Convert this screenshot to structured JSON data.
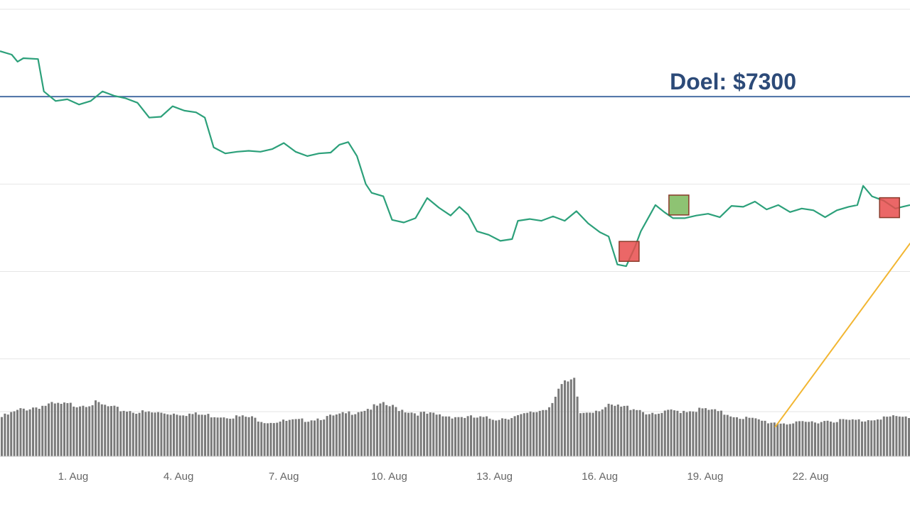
{
  "chart_data": {
    "type": "line",
    "x_axis": {
      "type": "datetime",
      "tick_labels": [
        "1. Aug",
        "4. Aug",
        "7. Aug",
        "10. Aug",
        "13. Aug",
        "16. Aug",
        "19. Aug",
        "22. Aug"
      ],
      "range": [
        "2018-07-29T22:00",
        "2018-08-24T20:00"
      ]
    },
    "price_axis": {
      "range": [
        5750,
        7800
      ],
      "grid": true,
      "gridlines": [
        5800,
        6300,
        6800,
        7300,
        7800
      ],
      "labels_visible": false
    },
    "volume_axis": {
      "range": [
        0,
        1
      ]
    },
    "target_line": {
      "label": "Doel: $7300",
      "value": 7300,
      "color": "#4a6fa5",
      "label_color": "#2c4a78"
    },
    "series": [
      {
        "kind": "price",
        "color": "#2ca07a",
        "points": [
          [
            "2018-07-29T22:00",
            7560
          ],
          [
            "2018-07-30T06:00",
            7540
          ],
          [
            "2018-07-30T10:00",
            7500
          ],
          [
            "2018-07-30T14:00",
            7520
          ],
          [
            "2018-07-31T00:00",
            7515
          ],
          [
            "2018-07-31T04:00",
            7330
          ],
          [
            "2018-07-31T12:00",
            7275
          ],
          [
            "2018-07-31T20:00",
            7285
          ],
          [
            "2018-08-01T04:00",
            7255
          ],
          [
            "2018-08-01T12:00",
            7275
          ],
          [
            "2018-08-01T20:00",
            7330
          ],
          [
            "2018-08-02T04:00",
            7305
          ],
          [
            "2018-08-02T12:00",
            7290
          ],
          [
            "2018-08-02T20:00",
            7265
          ],
          [
            "2018-08-03T04:00",
            7180
          ],
          [
            "2018-08-03T12:00",
            7185
          ],
          [
            "2018-08-03T20:00",
            7245
          ],
          [
            "2018-08-04T04:00",
            7220
          ],
          [
            "2018-08-04T12:00",
            7210
          ],
          [
            "2018-08-04T18:00",
            7180
          ],
          [
            "2018-08-05T00:00",
            7010
          ],
          [
            "2018-08-05T08:00",
            6975
          ],
          [
            "2018-08-05T16:00",
            6985
          ],
          [
            "2018-08-06T00:00",
            6990
          ],
          [
            "2018-08-06T08:00",
            6985
          ],
          [
            "2018-08-06T16:00",
            7000
          ],
          [
            "2018-08-07T00:00",
            7035
          ],
          [
            "2018-08-07T08:00",
            6985
          ],
          [
            "2018-08-07T16:00",
            6960
          ],
          [
            "2018-08-08T00:00",
            6975
          ],
          [
            "2018-08-08T08:00",
            6980
          ],
          [
            "2018-08-08T14:00",
            7025
          ],
          [
            "2018-08-08T20:00",
            7040
          ],
          [
            "2018-08-09T02:00",
            6960
          ],
          [
            "2018-08-09T08:00",
            6800
          ],
          [
            "2018-08-09T12:00",
            6750
          ],
          [
            "2018-08-09T20:00",
            6730
          ],
          [
            "2018-08-10T02:00",
            6595
          ],
          [
            "2018-08-10T10:00",
            6580
          ],
          [
            "2018-08-10T18:00",
            6605
          ],
          [
            "2018-08-11T02:00",
            6720
          ],
          [
            "2018-08-11T10:00",
            6665
          ],
          [
            "2018-08-11T18:00",
            6620
          ],
          [
            "2018-08-12T00:00",
            6670
          ],
          [
            "2018-08-12T06:00",
            6625
          ],
          [
            "2018-08-12T12:00",
            6530
          ],
          [
            "2018-08-12T20:00",
            6510
          ],
          [
            "2018-08-13T04:00",
            6475
          ],
          [
            "2018-08-13T12:00",
            6485
          ],
          [
            "2018-08-13T16:00",
            6590
          ],
          [
            "2018-08-14T00:00",
            6600
          ],
          [
            "2018-08-14T08:00",
            6590
          ],
          [
            "2018-08-14T16:00",
            6615
          ],
          [
            "2018-08-15T00:00",
            6590
          ],
          [
            "2018-08-15T08:00",
            6645
          ],
          [
            "2018-08-15T16:00",
            6575
          ],
          [
            "2018-08-16T00:00",
            6525
          ],
          [
            "2018-08-16T06:00",
            6500
          ],
          [
            "2018-08-16T12:00",
            6340
          ],
          [
            "2018-08-16T18:00",
            6330
          ],
          [
            "2018-08-17T00:00",
            6440
          ],
          [
            "2018-08-17T04:00",
            6530
          ],
          [
            "2018-08-17T10:00",
            6620
          ],
          [
            "2018-08-17T14:00",
            6680
          ],
          [
            "2018-08-17T20:00",
            6640
          ],
          [
            "2018-08-18T02:00",
            6605
          ],
          [
            "2018-08-18T10:00",
            6605
          ],
          [
            "2018-08-18T18:00",
            6620
          ],
          [
            "2018-08-19T02:00",
            6630
          ],
          [
            "2018-08-19T10:00",
            6610
          ],
          [
            "2018-08-19T18:00",
            6675
          ],
          [
            "2018-08-20T02:00",
            6670
          ],
          [
            "2018-08-20T10:00",
            6700
          ],
          [
            "2018-08-20T18:00",
            6655
          ],
          [
            "2018-08-21T02:00",
            6680
          ],
          [
            "2018-08-21T10:00",
            6640
          ],
          [
            "2018-08-21T18:00",
            6660
          ],
          [
            "2018-08-22T02:00",
            6650
          ],
          [
            "2018-08-22T10:00",
            6610
          ],
          [
            "2018-08-22T18:00",
            6650
          ],
          [
            "2018-08-23T02:00",
            6670
          ],
          [
            "2018-08-23T08:00",
            6680
          ],
          [
            "2018-08-23T12:00",
            6790
          ],
          [
            "2018-08-23T18:00",
            6730
          ],
          [
            "2018-08-24T02:00",
            6705
          ],
          [
            "2018-08-24T10:00",
            6660
          ],
          [
            "2018-08-24T20:00",
            6680
          ]
        ]
      },
      {
        "kind": "volume-bars",
        "color": "#7a7a7a",
        "pattern": [
          [
            "2018-07-29T22:00",
            0.5
          ],
          [
            "2018-07-30T12:00",
            0.6
          ],
          [
            "2018-07-31T06:00",
            0.66
          ],
          [
            "2018-08-01T00:00",
            0.66
          ],
          [
            "2018-08-01T14:00",
            0.68
          ],
          [
            "2018-08-02T06:00",
            0.6
          ],
          [
            "2018-08-03T00:00",
            0.56
          ],
          [
            "2018-08-04T00:00",
            0.55
          ],
          [
            "2018-08-05T00:00",
            0.52
          ],
          [
            "2018-08-06T00:00",
            0.5
          ],
          [
            "2018-08-06T12:00",
            0.44
          ],
          [
            "2018-08-07T12:00",
            0.46
          ],
          [
            "2018-08-08T12:00",
            0.52
          ],
          [
            "2018-08-09T06:00",
            0.6
          ],
          [
            "2018-08-09T20:00",
            0.66
          ],
          [
            "2018-08-10T16:00",
            0.56
          ],
          [
            "2018-08-11T12:00",
            0.52
          ],
          [
            "2018-08-12T06:00",
            0.5
          ],
          [
            "2018-08-13T00:00",
            0.48
          ],
          [
            "2018-08-13T18:00",
            0.52
          ],
          [
            "2018-08-14T12:00",
            0.62
          ],
          [
            "2018-08-14T20:00",
            0.9
          ],
          [
            "2018-08-15T06:00",
            0.96
          ],
          [
            "2018-08-15T10:00",
            0.55
          ],
          [
            "2018-08-16T06:00",
            0.64
          ],
          [
            "2018-08-17T00:00",
            0.62
          ],
          [
            "2018-08-17T12:00",
            0.52
          ],
          [
            "2018-08-18T00:00",
            0.58
          ],
          [
            "2018-08-19T00:00",
            0.6
          ],
          [
            "2018-08-20T00:00",
            0.5
          ],
          [
            "2018-08-20T18:00",
            0.44
          ],
          [
            "2018-08-21T12:00",
            0.42
          ],
          [
            "2018-08-22T12:00",
            0.46
          ],
          [
            "2018-08-23T12:00",
            0.46
          ],
          [
            "2018-08-24T00:00",
            0.5
          ],
          [
            "2018-08-24T20:00",
            0.5
          ]
        ]
      }
    ],
    "markers": [
      {
        "kind": "sell",
        "color": "#e84c4c",
        "x": "2018-08-16T20:00",
        "y": 6415
      },
      {
        "kind": "buy",
        "color": "#7ab85a",
        "x": "2018-08-18T06:00",
        "y": 6680
      },
      {
        "kind": "sell",
        "color": "#e84c4c",
        "x": "2018-08-24T06:00",
        "y": 6665
      }
    ],
    "trend_line": {
      "color": "#f2b632",
      "from": [
        "2018-08-21T00:00",
        0.38
      ],
      "to": [
        "2018-08-24T20:00",
        6460
      ]
    }
  }
}
